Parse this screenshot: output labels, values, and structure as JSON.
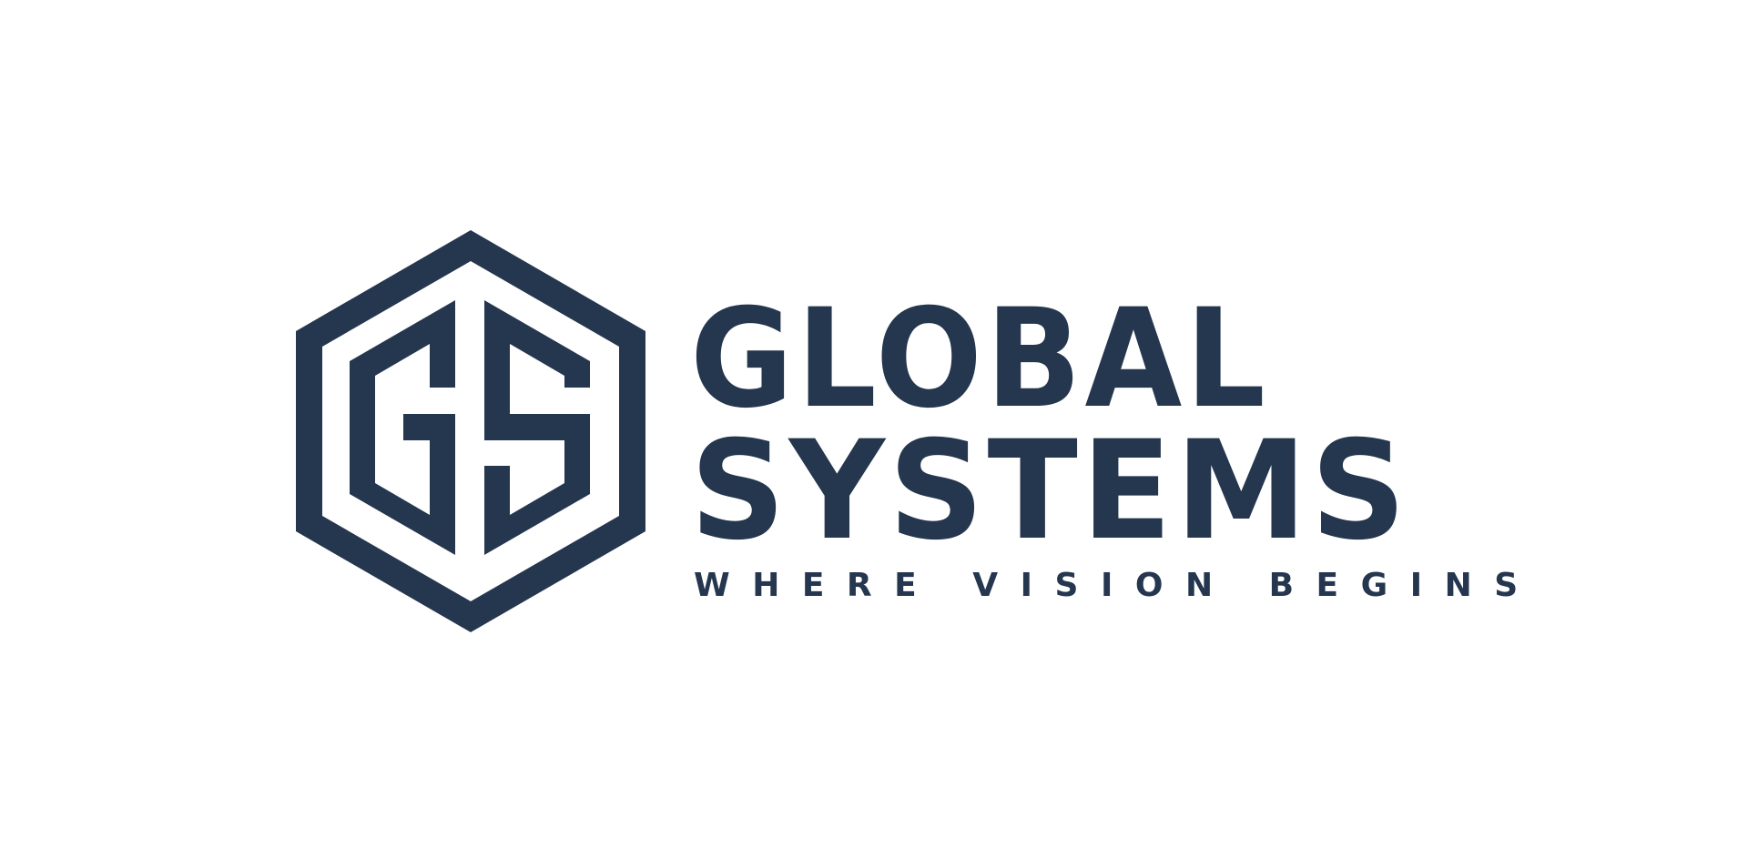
{
  "brand": {
    "name_line1": "GLOBAL",
    "name_line2": "SYSTEMS",
    "tagline": "WHERE VISION BEGINS",
    "monogram": "GS",
    "color": "#25364f",
    "background": "#ffffff"
  }
}
